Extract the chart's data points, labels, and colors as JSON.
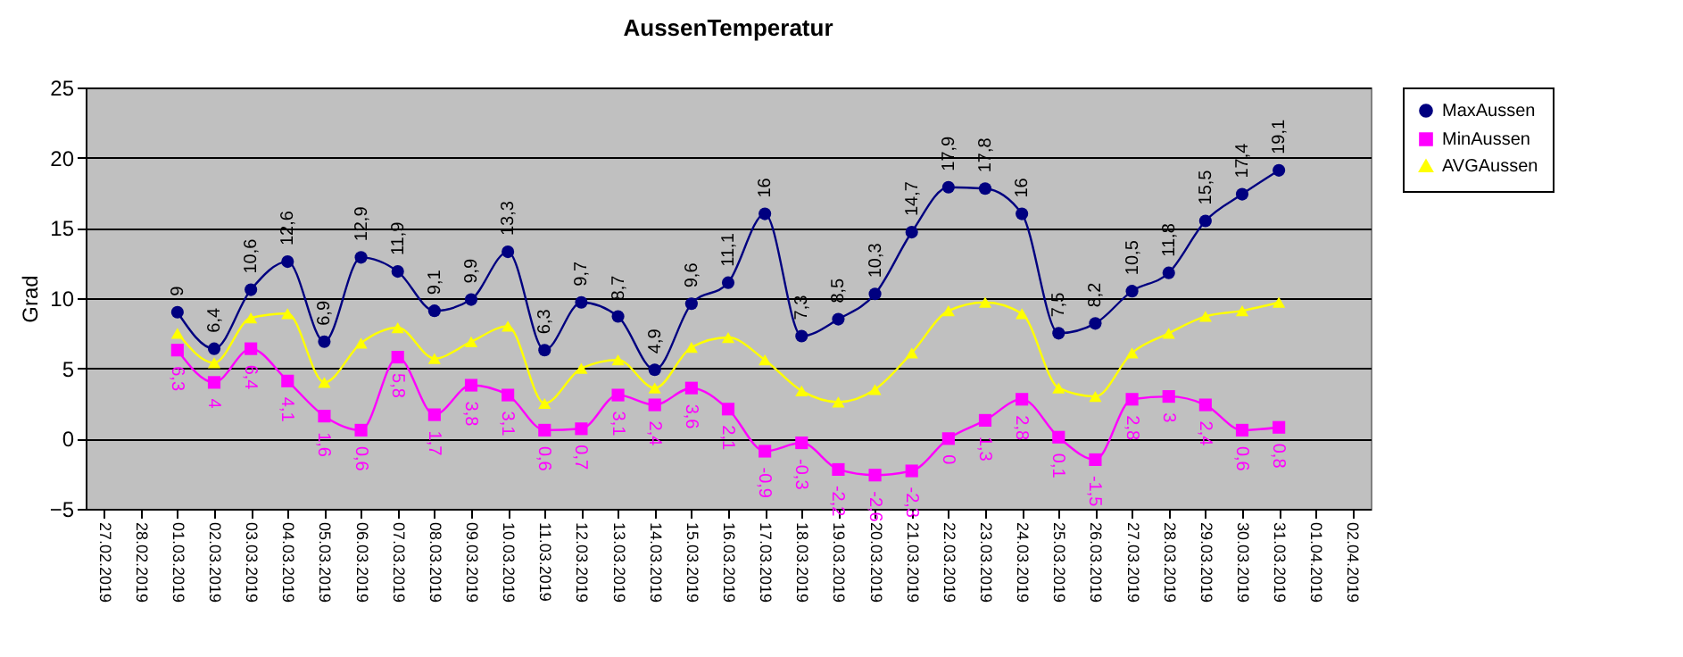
{
  "chart_data": {
    "type": "line",
    "title": "AussenTemperatur",
    "ylabel": "Grad",
    "categories": [
      "27.02.2019",
      "28.02.2019",
      "01.03.2019",
      "02.03.2019",
      "03.03.2019",
      "04.03.2019",
      "05.03.2019",
      "06.03.2019",
      "07.03.2019",
      "08.03.2019",
      "09.03.2019",
      "10.03.2019",
      "11.03.2019",
      "12.03.2019",
      "13.03.2019",
      "14.03.2019",
      "15.03.2019",
      "16.03.2019",
      "17.03.2019",
      "18.03.2019",
      "19.03.2019",
      "20.03.2019",
      "21.03.2019",
      "22.03.2019",
      "23.03.2019",
      "24.03.2019",
      "25.03.2019",
      "26.03.2019",
      "27.03.2019",
      "28.03.2019",
      "29.03.2019",
      "30.03.2019",
      "31.03.2019",
      "01.04.2019",
      "02.04.2019"
    ],
    "series": [
      {
        "name": "MaxAussen",
        "color": "#000080",
        "marker": "circle",
        "values": [
          null,
          null,
          9,
          6.4,
          10.6,
          12.6,
          6.9,
          12.9,
          11.9,
          9.1,
          9.9,
          13.3,
          6.3,
          9.7,
          8.7,
          4.9,
          9.6,
          11.1,
          16,
          7.3,
          8.5,
          10.3,
          14.7,
          17.9,
          17.8,
          16,
          7.5,
          8.2,
          10.5,
          11.8,
          15.5,
          17.4,
          19.1,
          null,
          null
        ],
        "value_labels": [
          null,
          null,
          "9",
          "6,4",
          "10,6",
          "12,6",
          "6,9",
          "12,9",
          "11,9",
          "9,1",
          "9,9",
          "13,3",
          "6,3",
          "9,7",
          "8,7",
          "4,9",
          "9,6",
          "11,1",
          "16",
          "7,3",
          "8,5",
          "10,3",
          "14,7",
          "17,9",
          "17,8",
          "16",
          "7,5",
          "8,2",
          "10,5",
          "11,8",
          "15,5",
          "17,4",
          "19,1",
          null,
          null
        ]
      },
      {
        "name": "MinAussen",
        "color": "#ff00ff",
        "marker": "square",
        "values": [
          null,
          null,
          6.3,
          4,
          6.4,
          4.1,
          1.6,
          0.6,
          5.8,
          1.7,
          3.8,
          3.1,
          0.6,
          0.7,
          3.1,
          2.4,
          3.6,
          2.1,
          -0.9,
          -0.3,
          -2.2,
          -2.6,
          -2.3,
          0,
          1.3,
          2.8,
          0.1,
          -1.5,
          2.8,
          3,
          2.4,
          0.6,
          0.8,
          null,
          null
        ],
        "value_labels": [
          null,
          null,
          "6,3",
          "4",
          "6,4",
          "4,1",
          "1,6",
          "0,6",
          "5,8",
          "1,7",
          "3,8",
          "3,1",
          "0,6",
          "0,7",
          "3,1",
          "2,4",
          "3,6",
          "2,1",
          "-0,9",
          "-0,3",
          "-2,2",
          "-2,6",
          "-2,3",
          "0",
          "1,3",
          "2,8",
          "0,1",
          "-1,5",
          "2,8",
          "3",
          "2,4",
          "0,6",
          "0,8",
          null,
          null
        ]
      },
      {
        "name": "AVGAussen",
        "color": "#ffff00",
        "marker": "triangle",
        "values": [
          null,
          null,
          7.5,
          5.4,
          8.6,
          8.9,
          4.0,
          6.8,
          7.9,
          5.7,
          6.9,
          8.0,
          2.5,
          5.0,
          5.6,
          3.6,
          6.5,
          7.2,
          5.6,
          3.4,
          2.6,
          3.5,
          6.1,
          9.1,
          9.7,
          8.9,
          3.6,
          3.0,
          6.1,
          7.5,
          8.7,
          9.1,
          9.7,
          null,
          null
        ]
      }
    ],
    "ylim": [
      -5,
      25
    ],
    "yticks": [
      -5,
      0,
      5,
      10,
      15,
      20,
      25
    ],
    "grid": "y",
    "legend": "right"
  }
}
